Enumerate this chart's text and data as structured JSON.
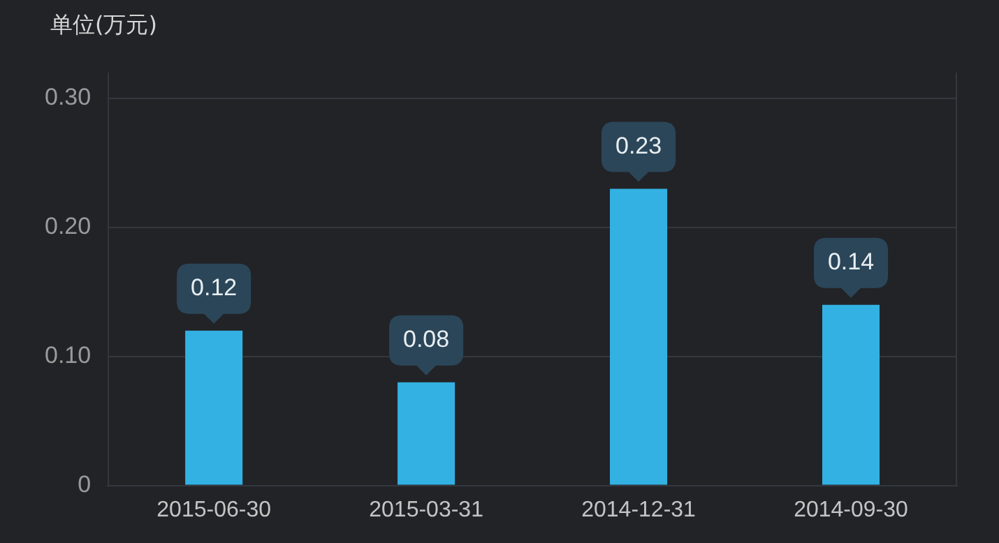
{
  "chart_data": {
    "type": "bar",
    "ylabel": "单位(万元)",
    "categories": [
      "2015-06-30",
      "2015-03-31",
      "2014-12-31",
      "2014-09-30"
    ],
    "values": [
      0.12,
      0.08,
      0.23,
      0.14
    ],
    "data_labels": true,
    "color": "#33b1e3",
    "ylim": [
      0,
      0.32
    ],
    "yticks": [
      {
        "value": 0,
        "label": "0"
      },
      {
        "value": 0.1,
        "label": "0.10"
      },
      {
        "value": 0.2,
        "label": "0.20"
      },
      {
        "value": 0.3,
        "label": "0.30"
      }
    ],
    "grid": "y",
    "legend": false
  }
}
